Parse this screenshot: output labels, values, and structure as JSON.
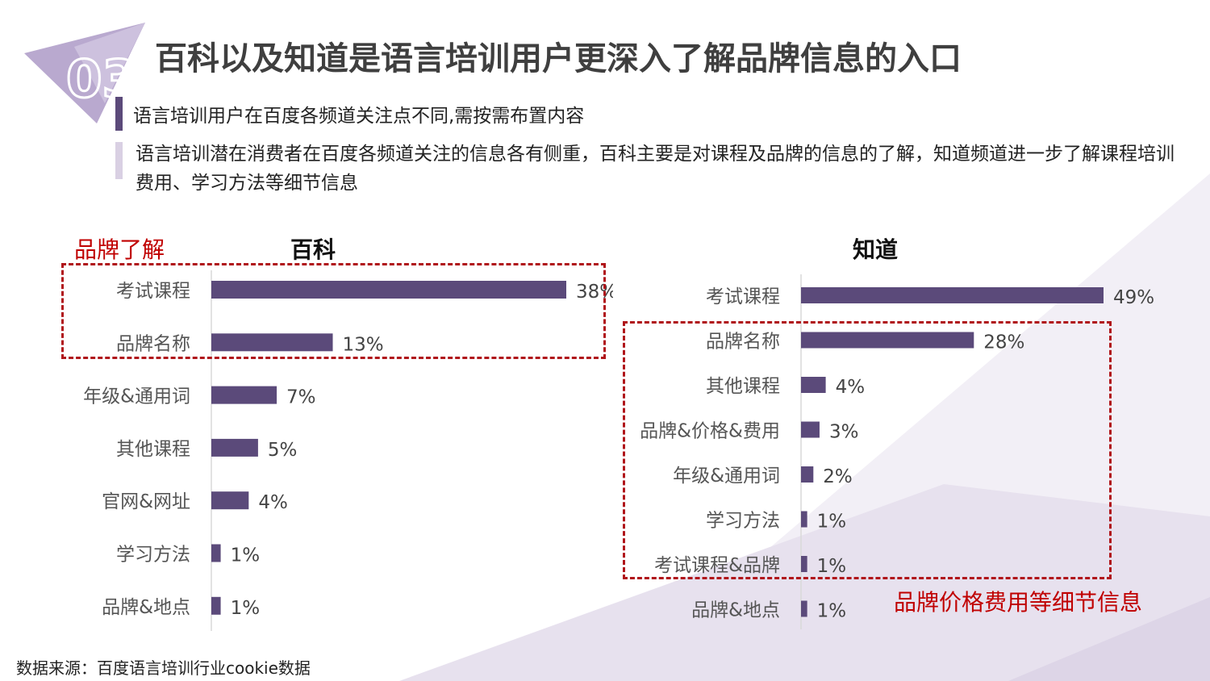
{
  "badge": {
    "number": "03"
  },
  "title": "百科以及知道是语言培训用户更深入了解品牌信息的入口",
  "subtitle": "语言培训用户在百度各频道关注点不同,需按需布置内容",
  "description": "语言培训潜在消费者在百度各频道关注的信息各有侧重，百科主要是对课程及品牌的信息的了解，知道频道进一步了解课程培训费用、学习方法等细节信息",
  "annotations": {
    "left_label": "品牌了解",
    "right_label": "品牌价格费用等细节信息"
  },
  "source": "数据来源：百度语言培训行业cookie数据",
  "colors": {
    "bar": "#5b4a7a",
    "title": "#3f3f3f",
    "highlight": "#c00000",
    "accent_dark": "#5b4a7a",
    "accent_light": "#d9d0e3"
  },
  "chart_data": [
    {
      "type": "bar",
      "orientation": "horizontal",
      "title": "百科",
      "categories": [
        "考试课程",
        "品牌名称",
        "年级&通用词",
        "其他课程",
        "官网&网址",
        "学习方法",
        "品牌&地点"
      ],
      "values": [
        38,
        13,
        7,
        5,
        4,
        1,
        1
      ],
      "value_labels": [
        "38%",
        "13%",
        "7%",
        "5%",
        "4%",
        "1%",
        "1%"
      ],
      "unit": "%",
      "xlim": [
        0,
        38
      ]
    },
    {
      "type": "bar",
      "orientation": "horizontal",
      "title": "知道",
      "categories": [
        "考试课程",
        "品牌名称",
        "其他课程",
        "品牌&价格&费用",
        "年级&通用词",
        "学习方法",
        "考试课程&品牌",
        "品牌&地点"
      ],
      "values": [
        49,
        28,
        4,
        3,
        2,
        1,
        1,
        1
      ],
      "value_labels": [
        "49%",
        "28%",
        "4%",
        "3%",
        "2%",
        "1%",
        "1%",
        "1%"
      ],
      "unit": "%",
      "xlim": [
        0,
        49
      ]
    }
  ]
}
